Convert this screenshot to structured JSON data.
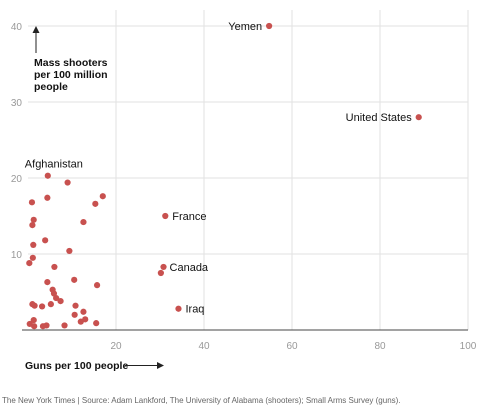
{
  "chart_data": {
    "type": "scatter",
    "xlabel": "Guns per 100 people",
    "ylabel": "Mass shooters per 100 million people",
    "xlim": [
      0,
      100
    ],
    "ylim": [
      0,
      40
    ],
    "x_ticks": [
      "20",
      "40",
      "60",
      "80",
      "100"
    ],
    "y_ticks": [
      "10",
      "20",
      "30",
      "40"
    ],
    "grid": true,
    "point_color": "#c8514f",
    "points": [
      {
        "label": "Yemen",
        "x": 54.8,
        "y": 40.0
      },
      {
        "label": "United States",
        "x": 88.8,
        "y": 28.0
      },
      {
        "label": "Afghanistan",
        "x": 4.5,
        "y": 20.3
      },
      {
        "label": "France",
        "x": 31.2,
        "y": 15.0
      },
      {
        "label": "Canada",
        "x": 30.8,
        "y": 8.3
      },
      {
        "label": "Iraq",
        "x": 34.2,
        "y": 2.8
      },
      {
        "x": 9.0,
        "y": 19.4
      },
      {
        "x": 17.0,
        "y": 17.6
      },
      {
        "x": 4.4,
        "y": 17.4
      },
      {
        "x": 0.9,
        "y": 16.8
      },
      {
        "x": 15.3,
        "y": 16.6
      },
      {
        "x": 1.3,
        "y": 14.5
      },
      {
        "x": 12.6,
        "y": 14.2
      },
      {
        "x": 1.0,
        "y": 13.8
      },
      {
        "x": 3.9,
        "y": 11.8
      },
      {
        "x": 1.2,
        "y": 11.2
      },
      {
        "x": 9.4,
        "y": 10.4
      },
      {
        "x": 1.1,
        "y": 9.5
      },
      {
        "x": 0.3,
        "y": 8.8
      },
      {
        "x": 6.0,
        "y": 8.3
      },
      {
        "x": 30.2,
        "y": 7.5
      },
      {
        "x": 10.5,
        "y": 6.6
      },
      {
        "x": 4.4,
        "y": 6.3
      },
      {
        "x": 15.7,
        "y": 5.9
      },
      {
        "x": 5.6,
        "y": 5.3
      },
      {
        "x": 5.9,
        "y": 4.8
      },
      {
        "x": 6.4,
        "y": 4.2
      },
      {
        "x": 7.4,
        "y": 3.8
      },
      {
        "x": 1.0,
        "y": 3.4
      },
      {
        "x": 1.5,
        "y": 3.2
      },
      {
        "x": 3.2,
        "y": 3.1
      },
      {
        "x": 5.2,
        "y": 3.4
      },
      {
        "x": 10.8,
        "y": 3.2
      },
      {
        "x": 12.6,
        "y": 2.4
      },
      {
        "x": 10.6,
        "y": 2.0
      },
      {
        "x": 13.0,
        "y": 1.4
      },
      {
        "x": 12.0,
        "y": 1.1
      },
      {
        "x": 15.5,
        "y": 0.9
      },
      {
        "x": 1.3,
        "y": 1.3
      },
      {
        "x": 0.4,
        "y": 0.8
      },
      {
        "x": 1.4,
        "y": 0.5
      },
      {
        "x": 3.4,
        "y": 0.5
      },
      {
        "x": 4.2,
        "y": 0.6
      },
      {
        "x": 8.3,
        "y": 0.6
      }
    ]
  },
  "source_text": "The New York Times  |  Source: Adam Lankford, The University of Alabama (shooters); Small Arms Survey (guns)."
}
